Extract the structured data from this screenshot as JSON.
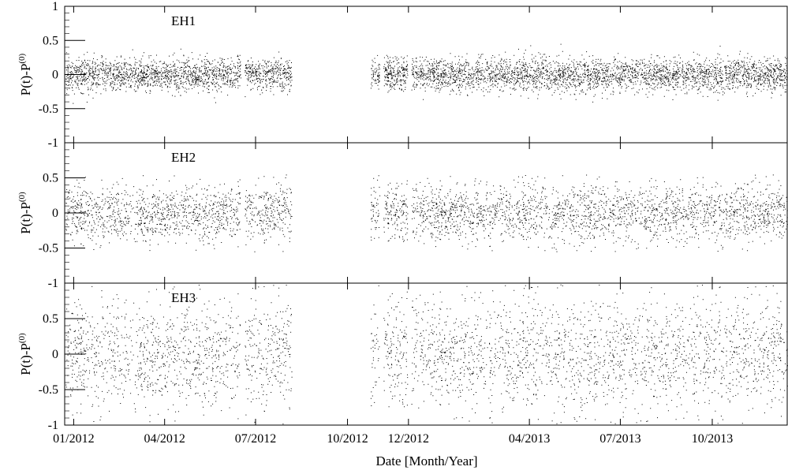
{
  "chart_data": {
    "type": "scatter",
    "xlabel": "Date [Month/Year]",
    "x_tick_labels": [
      "01/2012",
      "04/2012",
      "07/2012",
      "10/2012",
      "12/2012",
      "04/2013",
      "07/2013",
      "10/2013"
    ],
    "x_tick_dates": [
      "2012-01-01",
      "2012-04-01",
      "2012-07-01",
      "2012-10-01",
      "2012-12-01",
      "2013-04-01",
      "2013-07-01",
      "2013-10-01"
    ],
    "xlim": [
      "2011-12-23",
      "2013-12-15"
    ],
    "data_segments": [
      [
        "2011-12-24",
        "2012-06-16"
      ],
      [
        "2012-06-20",
        "2012-08-06"
      ],
      [
        "2012-10-24",
        "2012-11-02"
      ],
      [
        "2012-11-06",
        "2012-11-30"
      ],
      [
        "2012-12-04",
        "2013-12-15"
      ]
    ],
    "panels": [
      {
        "name": "EH1",
        "label": "EH1",
        "ylabel": "P(t)-P",
        "ylabel_sup": "(0)",
        "ylim": [
          -1,
          1
        ],
        "y_ticks": [
          "-1",
          "-0.5",
          "0",
          "0.5",
          "1"
        ],
        "spread_sd": 0.12,
        "spread_max": 0.45,
        "point_count": 9000
      },
      {
        "name": "EH2",
        "label": "EH2",
        "ylabel": "P(t)-P",
        "ylabel_sup": "(0)",
        "ylim": [
          -1,
          1
        ],
        "y_ticks": [
          "-1",
          "-0.5",
          "0",
          "0.5"
        ],
        "spread_sd": 0.2,
        "spread_max": 0.55,
        "point_count": 9000
      },
      {
        "name": "EH3",
        "label": "EH3",
        "ylabel": "P(t)-P",
        "ylabel_sup": "(0)",
        "ylim": [
          -1,
          1
        ],
        "y_ticks": [
          "-1",
          "-0.5",
          "0",
          "0.5"
        ],
        "spread_sd": 0.38,
        "spread_max": 0.98,
        "point_count": 5000
      }
    ],
    "marker_color": "#000000",
    "grid": false
  }
}
